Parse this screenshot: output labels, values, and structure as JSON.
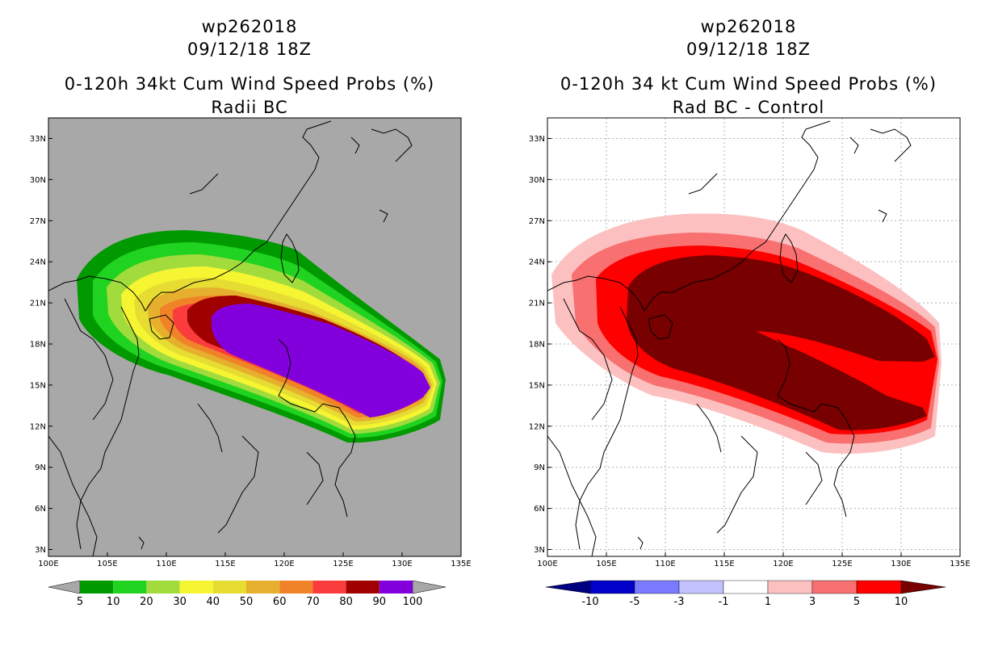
{
  "panels": [
    {
      "id": "left",
      "storm_id": "wp262018",
      "datetime": "09/12/18 18Z",
      "product": "0-120h 34kt Cum Wind Speed Probs (%)",
      "subtitle": "Radii BC",
      "colorbar": {
        "labels": [
          "5",
          "10",
          "20",
          "30",
          "40",
          "50",
          "60",
          "70",
          "80",
          "90",
          "100"
        ],
        "colors": [
          "#009a00",
          "#21d321",
          "#a2dc3c",
          "#f5f532",
          "#e6dc32",
          "#e6af2d",
          "#f08228",
          "#fa3c3c",
          "#a00000",
          "#8200dc"
        ],
        "end_color": "#a8a8a8"
      },
      "background": "#a8a8a8"
    },
    {
      "id": "right",
      "storm_id": "wp262018",
      "datetime": "09/12/18 18Z",
      "product": "0-120h 34 kt Cum Wind Speed Probs (%)",
      "subtitle": "Rad BC - Control",
      "colorbar": {
        "labels": [
          "-10",
          "-5",
          "-3",
          "-1",
          "1",
          "3",
          "5",
          "10"
        ],
        "colors": [
          "#0000c8",
          "#7a7aff",
          "#c2c2ff",
          "#ffffff",
          "#fcc0c0",
          "#f87070",
          "#ff0000",
          "#780000"
        ],
        "left_end_color": "#000080",
        "right_end_color": "#780000"
      },
      "background": "#ffffff"
    }
  ],
  "axes": {
    "lon_labels": [
      "100E",
      "105E",
      "110E",
      "115E",
      "120E",
      "125E",
      "130E",
      "135E"
    ],
    "lat_labels": [
      "3N",
      "6N",
      "9N",
      "12N",
      "15N",
      "18N",
      "21N",
      "24N",
      "27N",
      "30N",
      "33N"
    ],
    "lon_range": [
      100,
      135
    ],
    "lat_range": [
      2.5,
      34.5
    ]
  }
}
